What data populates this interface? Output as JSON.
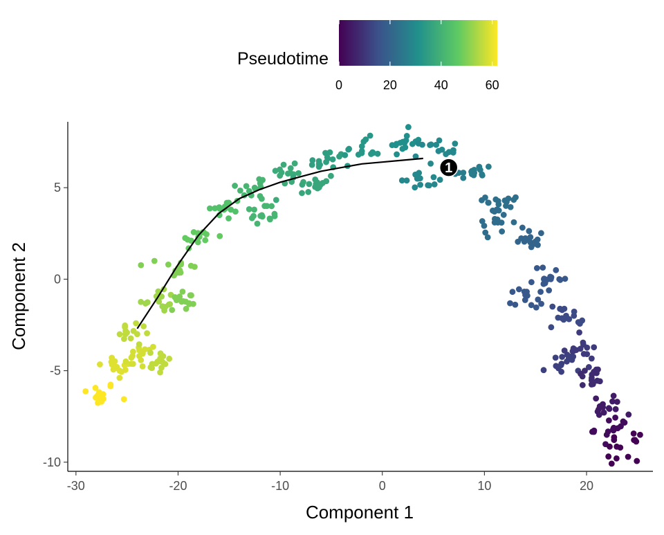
{
  "chart_data": {
    "type": "scatter",
    "xlabel": "Component 1",
    "ylabel": "Component 2",
    "xlim": [
      -30.8,
      26.5
    ],
    "ylim": [
      -10.5,
      8.6
    ],
    "x_ticks": [
      -30,
      -20,
      -10,
      0,
      10,
      20
    ],
    "x_tick_labels": [
      "-30",
      "-20",
      "-10",
      "0",
      "10",
      "20"
    ],
    "y_ticks": [
      -10,
      -5,
      0,
      5
    ],
    "y_tick_labels": [
      "-10",
      "-5",
      "0",
      "5"
    ],
    "grid": false,
    "color_variable": "Pseudotime",
    "legend": {
      "title": "Pseudotime",
      "placement": "top",
      "range": [
        0,
        62
      ],
      "ticks": [
        0,
        20,
        40,
        60
      ],
      "tick_labels": [
        "0",
        "20",
        "40",
        "60"
      ],
      "colormap": [
        "#440154",
        "#3b528b",
        "#21908c",
        "#5dc963",
        "#fde725"
      ]
    },
    "trajectory": {
      "description": "principal curve (black)",
      "x": [
        -24,
        -22,
        -20,
        -18,
        -16,
        -14,
        -12,
        -10,
        -8,
        -6,
        -4,
        -2,
        0,
        2,
        4
      ],
      "y": [
        -2.7,
        -1.0,
        0.8,
        2.4,
        3.6,
        4.4,
        4.9,
        5.3,
        5.6,
        5.9,
        6.1,
        6.3,
        6.4,
        6.5,
        6.6
      ]
    },
    "branch_points": [
      {
        "label": "1",
        "x": 6.5,
        "y": 6.1
      }
    ],
    "series": [
      {
        "values": [
          {
            "x": 23.3,
            "y": -9.2,
            "pseudotime": 0
          },
          {
            "x": 22.6,
            "y": -8.2,
            "pseudotime": 2
          },
          {
            "x": 21.6,
            "y": -7.0,
            "pseudotime": 5
          },
          {
            "x": 20.5,
            "y": -5.4,
            "pseudotime": 8
          },
          {
            "x": 19.4,
            "y": -3.8,
            "pseudotime": 11
          },
          {
            "x": 18.0,
            "y": -2.0,
            "pseudotime": 14
          },
          {
            "x": 16.5,
            "y": 0.0,
            "pseudotime": 17
          },
          {
            "x": 14.5,
            "y": 2.3,
            "pseudotime": 20
          },
          {
            "x": 12.0,
            "y": 4.3,
            "pseudotime": 23
          },
          {
            "x": 9.0,
            "y": 5.8,
            "pseudotime": 26
          },
          {
            "x": 5.5,
            "y": 7.0,
            "pseudotime": 29
          },
          {
            "x": 2.0,
            "y": 7.5,
            "pseudotime": 31
          },
          {
            "x": -2.0,
            "y": 7.0,
            "pseudotime": 33
          },
          {
            "x": -5.5,
            "y": 6.4,
            "pseudotime": 35
          },
          {
            "x": -9.0,
            "y": 5.8,
            "pseudotime": 38
          },
          {
            "x": -12.5,
            "y": 5.0,
            "pseudotime": 41
          },
          {
            "x": -15.5,
            "y": 3.8,
            "pseudotime": 44
          },
          {
            "x": -18.0,
            "y": 2.3,
            "pseudotime": 47
          },
          {
            "x": -20.0,
            "y": 0.6,
            "pseudotime": 50
          },
          {
            "x": -22.0,
            "y": -1.1,
            "pseudotime": 53
          },
          {
            "x": -24.0,
            "y": -3.0,
            "pseudotime": 56
          },
          {
            "x": -26.0,
            "y": -4.8,
            "pseudotime": 59
          },
          {
            "x": -27.8,
            "y": -6.3,
            "pseudotime": 62
          },
          {
            "x": 17.5,
            "y": -4.7,
            "pseudotime": 12
          },
          {
            "x": 14.2,
            "y": -0.9,
            "pseudotime": 17
          },
          {
            "x": 11.0,
            "y": 3.1,
            "pseudotime": 22
          },
          {
            "x": 3.5,
            "y": 5.5,
            "pseudotime": 29
          },
          {
            "x": -6.5,
            "y": 5.2,
            "pseudotime": 37
          },
          {
            "x": -11.8,
            "y": 3.5,
            "pseudotime": 41
          },
          {
            "x": -19.5,
            "y": -1.2,
            "pseudotime": 50
          },
          {
            "x": -22.0,
            "y": -4.5,
            "pseudotime": 56
          },
          {
            "x": -23.8,
            "y": -4.2,
            "pseudotime": 58
          }
        ]
      }
    ]
  }
}
